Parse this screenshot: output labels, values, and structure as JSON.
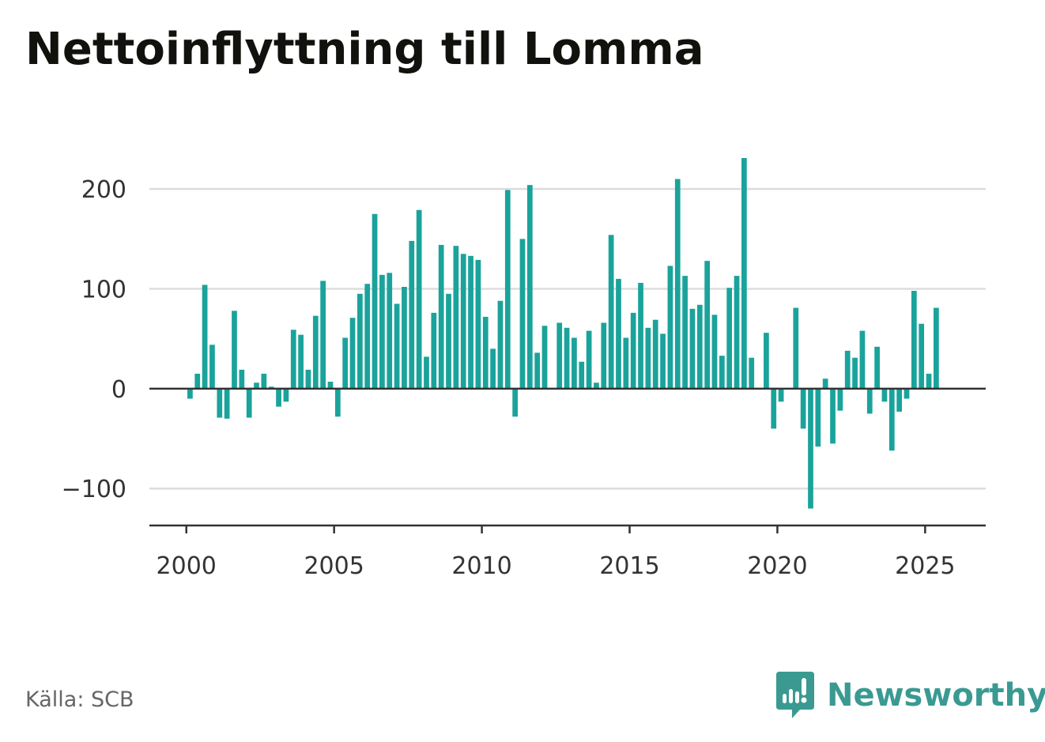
{
  "title": "Nettoinflyttning till Lomma",
  "source": "Källa: SCB",
  "brand": {
    "name": "Newsworthy",
    "icon": "newsworthy-logo-icon",
    "color": "#3a9a92"
  },
  "colors": {
    "bar": "#1aa39b",
    "grid": "#dddddd",
    "axis": "#333333"
  },
  "chart_data": {
    "type": "bar",
    "title": "Nettoinflyttning till Lomma",
    "xlabel": "",
    "ylabel": "",
    "ylim": [
      -137,
      231
    ],
    "xlim": [
      1998.75,
      2027.05
    ],
    "grid": true,
    "yticks": [
      {
        "value": 200,
        "label": "200"
      },
      {
        "value": 100,
        "label": "100"
      },
      {
        "value": 0,
        "label": "0"
      },
      {
        "value": -100,
        "label": "−100"
      }
    ],
    "xticks": [
      {
        "value": 2000,
        "label": "2000"
      },
      {
        "value": 2005,
        "label": "2005"
      },
      {
        "value": 2010,
        "label": "2010"
      },
      {
        "value": 2015,
        "label": "2015"
      },
      {
        "value": 2020,
        "label": "2020"
      },
      {
        "value": 2025,
        "label": "2025"
      }
    ],
    "series": [
      {
        "x": [
          2000.125,
          2000.375,
          2000.625,
          2000.875,
          2001.125,
          2001.375,
          2001.625,
          2001.875,
          2002.125,
          2002.375,
          2002.625,
          2002.875,
          2003.125,
          2003.375,
          2003.625,
          2003.875,
          2004.125,
          2004.375,
          2004.625,
          2004.875,
          2005.125,
          2005.375,
          2005.625,
          2005.875,
          2006.125,
          2006.375,
          2006.625,
          2006.875,
          2007.125,
          2007.375,
          2007.625,
          2007.875,
          2008.125,
          2008.375,
          2008.625,
          2008.875,
          2009.125,
          2009.375,
          2009.625,
          2009.875,
          2010.125,
          2010.375,
          2010.625,
          2010.875,
          2011.125,
          2011.375,
          2011.625,
          2011.875,
          2012.125,
          2012.375,
          2012.625,
          2012.875,
          2013.125,
          2013.375,
          2013.625,
          2013.875,
          2014.125,
          2014.375,
          2014.625,
          2014.875,
          2015.125,
          2015.375,
          2015.625,
          2015.875,
          2016.125,
          2016.375,
          2016.625,
          2016.875,
          2017.125,
          2017.375,
          2017.625,
          2017.875,
          2018.125,
          2018.375,
          2018.625,
          2018.875,
          2019.125,
          2019.375,
          2019.625,
          2019.875,
          2020.125,
          2020.375,
          2020.625,
          2020.875,
          2021.125,
          2021.375,
          2021.625,
          2021.875,
          2022.125,
          2022.375,
          2022.625,
          2022.875,
          2023.125,
          2023.375,
          2023.625,
          2023.875,
          2024.125,
          2024.375,
          2024.625,
          2024.875,
          2025.125,
          2025.375
        ],
        "values": [
          -10,
          15,
          104,
          44,
          -29,
          -30,
          78,
          19,
          -29,
          6,
          15,
          2,
          -18,
          -13,
          59,
          54,
          19,
          73,
          108,
          7,
          -28,
          51,
          71,
          95,
          105,
          175,
          114,
          116,
          85,
          102,
          148,
          179,
          32,
          76,
          144,
          95,
          143,
          135,
          133,
          129,
          72,
          40,
          88,
          199,
          -28,
          150,
          204,
          36,
          63,
          0,
          66,
          61,
          51,
          27,
          58,
          6,
          66,
          154,
          110,
          51,
          76,
          106,
          61,
          69,
          55,
          123,
          210,
          113,
          80,
          84,
          128,
          74,
          33,
          101,
          113,
          231,
          31,
          0,
          56,
          -40,
          -13,
          0,
          81,
          -40,
          -120,
          -58,
          10,
          -55,
          -22,
          38,
          31,
          58,
          -25,
          42,
          -13,
          -62,
          -23,
          -10,
          98,
          65,
          15,
          81
        ]
      }
    ]
  }
}
